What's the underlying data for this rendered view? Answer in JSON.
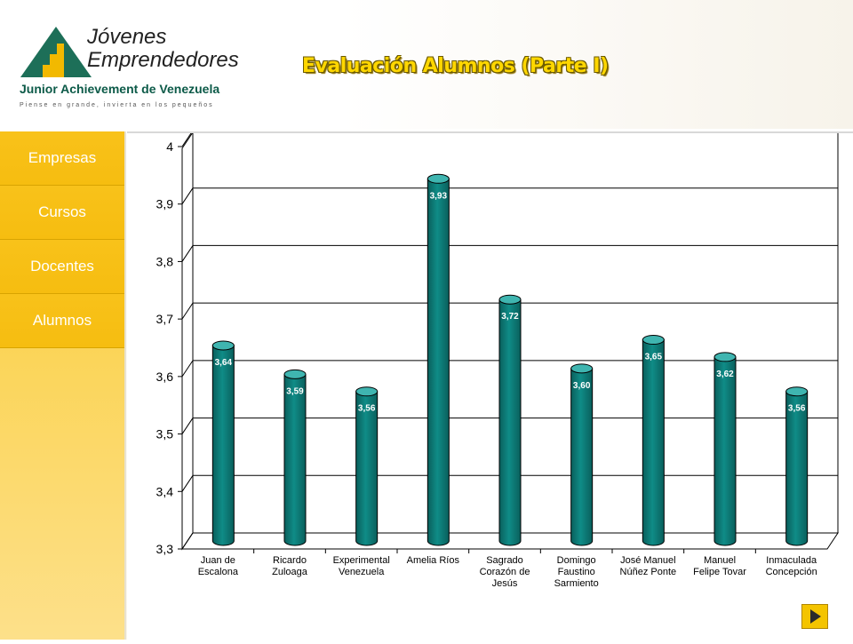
{
  "logo": {
    "line1": "Jóvenes",
    "line2": "Emprendedores",
    "org": "Junior Achievement de Venezuela",
    "tagline": "Piense en grande, invierta en los pequeños"
  },
  "page_title": "Evaluación Alumnos (Parte I)",
  "sidebar": {
    "items": [
      {
        "label": "Empresas"
      },
      {
        "label": "Cursos"
      },
      {
        "label": "Docentes"
      },
      {
        "label": "Alumnos"
      }
    ]
  },
  "colors": {
    "bar": "#0f8c87",
    "bar_dark": "#0a5f5c",
    "bar_light": "#3fb5b0",
    "nav": "#f6bd10",
    "title": "#ffd700"
  },
  "chart_data": {
    "type": "bar",
    "title": "",
    "xlabel": "",
    "ylabel": "",
    "ylim": [
      3.3,
      4
    ],
    "yticks": [
      "3,3",
      "3,4",
      "3,5",
      "3,6",
      "3,7",
      "3,8",
      "3,9",
      "4"
    ],
    "grid": true,
    "categories": [
      [
        "Juan de",
        "Escalona"
      ],
      [
        "Ricardo",
        "Zuloaga"
      ],
      [
        "Experimental",
        "Venezuela"
      ],
      [
        "Amelia Ríos"
      ],
      [
        "Sagrado",
        "Corazón de",
        "Jesús"
      ],
      [
        "Domingo",
        "Faustino",
        "Sarmiento"
      ],
      [
        "José Manuel",
        "Núñez Ponte"
      ],
      [
        "Manuel",
        "Felipe Tovar"
      ],
      [
        "Inmaculada",
        "Concepción"
      ]
    ],
    "values": [
      3.64,
      3.59,
      3.56,
      3.93,
      3.72,
      3.6,
      3.65,
      3.62,
      3.56
    ],
    "data_labels": [
      "3,64",
      "3,59",
      "3,56",
      "3,93",
      "3,72",
      "3,60",
      "3,65",
      "3,62",
      "3,56"
    ]
  }
}
